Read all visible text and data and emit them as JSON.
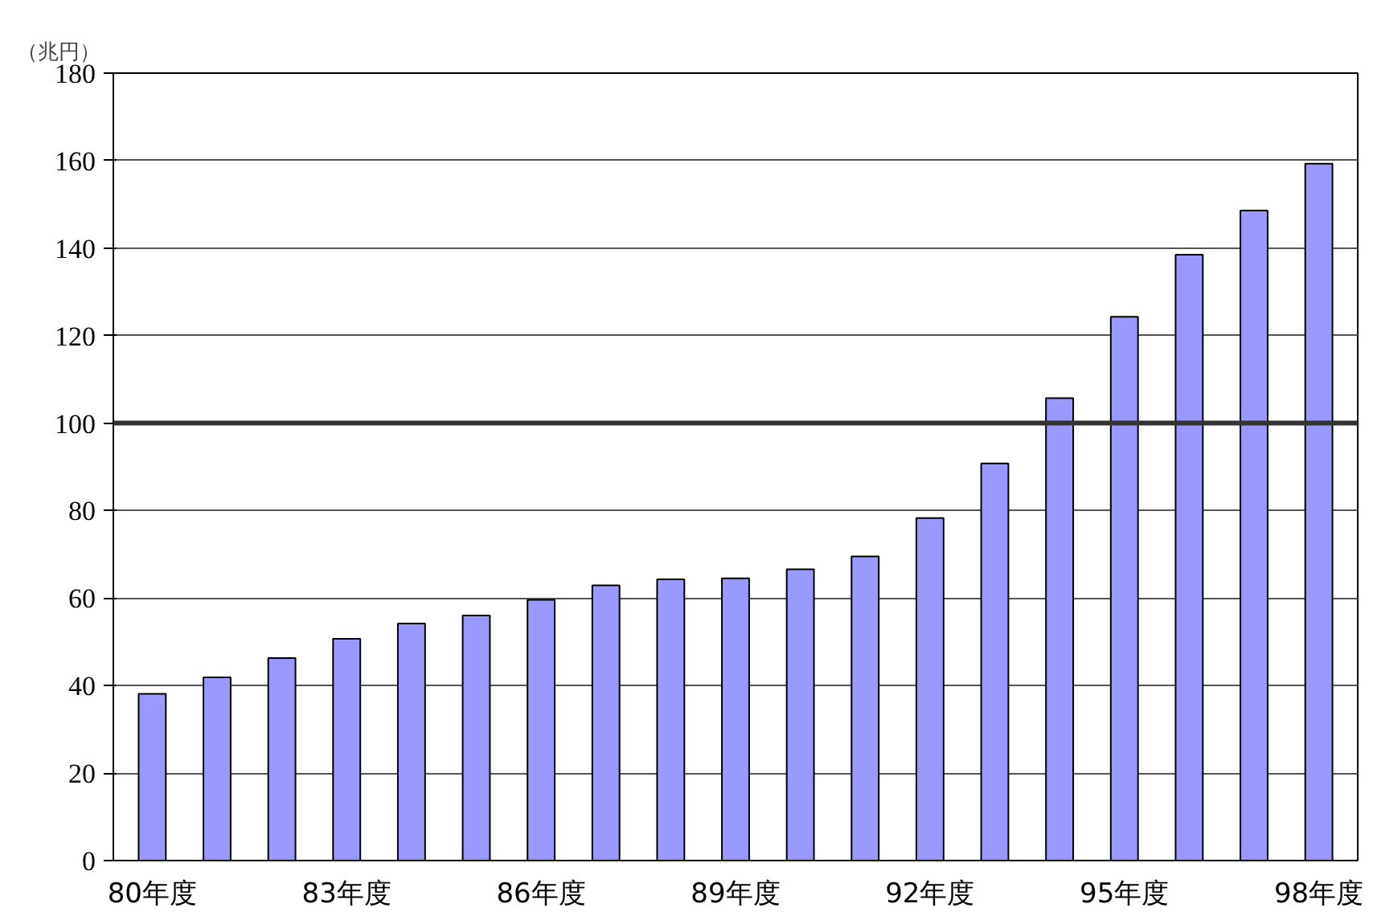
{
  "chart_data": {
    "type": "bar",
    "ylabel": "（兆円）",
    "categories": [
      "80年度",
      null,
      null,
      "83年度",
      null,
      null,
      "86年度",
      null,
      null,
      "89年度",
      null,
      null,
      "92年度",
      null,
      null,
      "95年度",
      null,
      null,
      "98年度"
    ],
    "values": [
      38.1,
      41.9,
      46.3,
      50.7,
      54.2,
      56,
      59.6,
      62.9,
      64.3,
      64.5,
      66.6,
      69.5,
      78.3,
      90.8,
      105.7,
      124.3,
      138.5,
      148.6,
      159.3
    ],
    "color": "#9999ff",
    "ylim": [
      0,
      180
    ],
    "yticks": [
      0,
      20,
      40,
      60,
      80,
      100,
      120,
      140,
      160,
      180
    ],
    "grid": "y",
    "ref_lines": [
      {
        "axis": "y",
        "value": 100,
        "color": "#333333"
      }
    ]
  }
}
